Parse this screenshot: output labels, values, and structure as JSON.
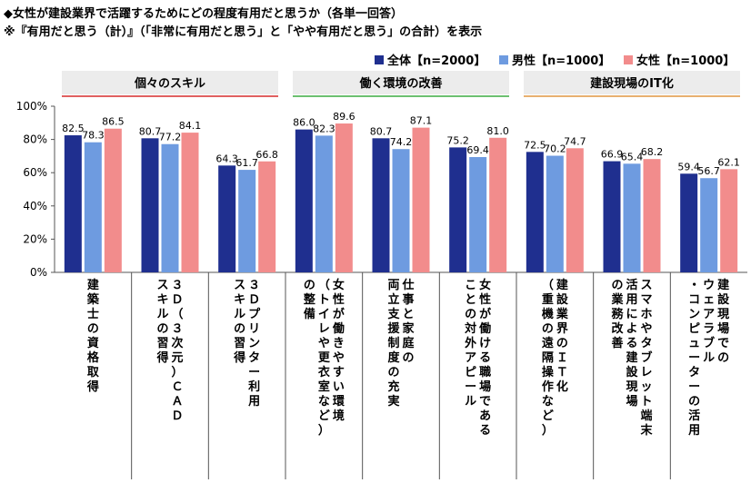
{
  "header": {
    "title": "◆女性が建設業界で活躍するためにどの程度有用だと思うか（各単一回答）",
    "note": "※『有用だと思う（計）』（「非常に有用だと思う」と「やや有用だと思う」の合計）を表示"
  },
  "colors": {
    "all": "#1f2f8f",
    "male": "#6e9be0",
    "female": "#f28c8c",
    "group_line_1": "#e06060",
    "group_line_2": "#6cc070",
    "group_line_3": "#e8b070"
  },
  "chart_data": {
    "type": "bar",
    "ylim": [
      0,
      100
    ],
    "ytick_values": [
      0,
      20,
      40,
      60,
      80,
      100
    ],
    "ytick_labels": [
      "0%",
      "20%",
      "40%",
      "60%",
      "80%",
      "100%"
    ],
    "grid": false,
    "legend_position": "top-right",
    "groups": [
      {
        "label": "個々のスキル",
        "start": 0,
        "end": 2
      },
      {
        "label": "働く環境の改善",
        "start": 3,
        "end": 5
      },
      {
        "label": "建設現場のIT化",
        "start": 6,
        "end": 8
      }
    ],
    "categories": [
      [
        "建築士の資格取得"
      ],
      [
        "３Ｄ（３次元）ＣＡＤ",
        "スキルの習得"
      ],
      [
        "３Ｄプリンター利用",
        "スキルの習得"
      ],
      [
        "女性が働きやすい環境",
        "（トイレや更衣室など）",
        "の整備"
      ],
      [
        "仕事と家庭の",
        "両立支援制度の充実"
      ],
      [
        "女性が働ける職場である",
        "ことの対外アピール"
      ],
      [
        "建設業界のＩＴ化",
        "（重機の遠隔操作など）"
      ],
      [
        "スマホやタブレット端末",
        "活用による建設現場",
        "の業務改善"
      ],
      [
        "建設現場での",
        "ウェアラブル",
        "・コンピューターの活用"
      ]
    ],
    "series": [
      {
        "name": "全体【n=2000】",
        "values": [
          82.5,
          80.7,
          64.3,
          86.0,
          80.7,
          75.2,
          72.5,
          66.9,
          59.4
        ],
        "labels": [
          "82.5",
          "80.7",
          "64.3",
          "86.0",
          "80.7",
          "75.2",
          "72.5",
          "66.9",
          "59.4"
        ]
      },
      {
        "name": "男性【n=1000】",
        "values": [
          78.3,
          77.2,
          61.7,
          82.3,
          74.2,
          69.4,
          70.2,
          65.4,
          56.7
        ],
        "labels": [
          "78.3",
          "77.2",
          "61.7",
          "82.3",
          "74.2",
          "69.4",
          "70.2",
          "65.4",
          "56.7"
        ]
      },
      {
        "name": "女性【n=1000】",
        "values": [
          86.5,
          84.1,
          66.8,
          89.6,
          87.1,
          81.0,
          74.7,
          68.2,
          62.1
        ],
        "labels": [
          "86.5",
          "84.1",
          "66.8",
          "89.6",
          "87.1",
          "81.0",
          "74.7",
          "68.2",
          "62.1"
        ]
      }
    ]
  }
}
